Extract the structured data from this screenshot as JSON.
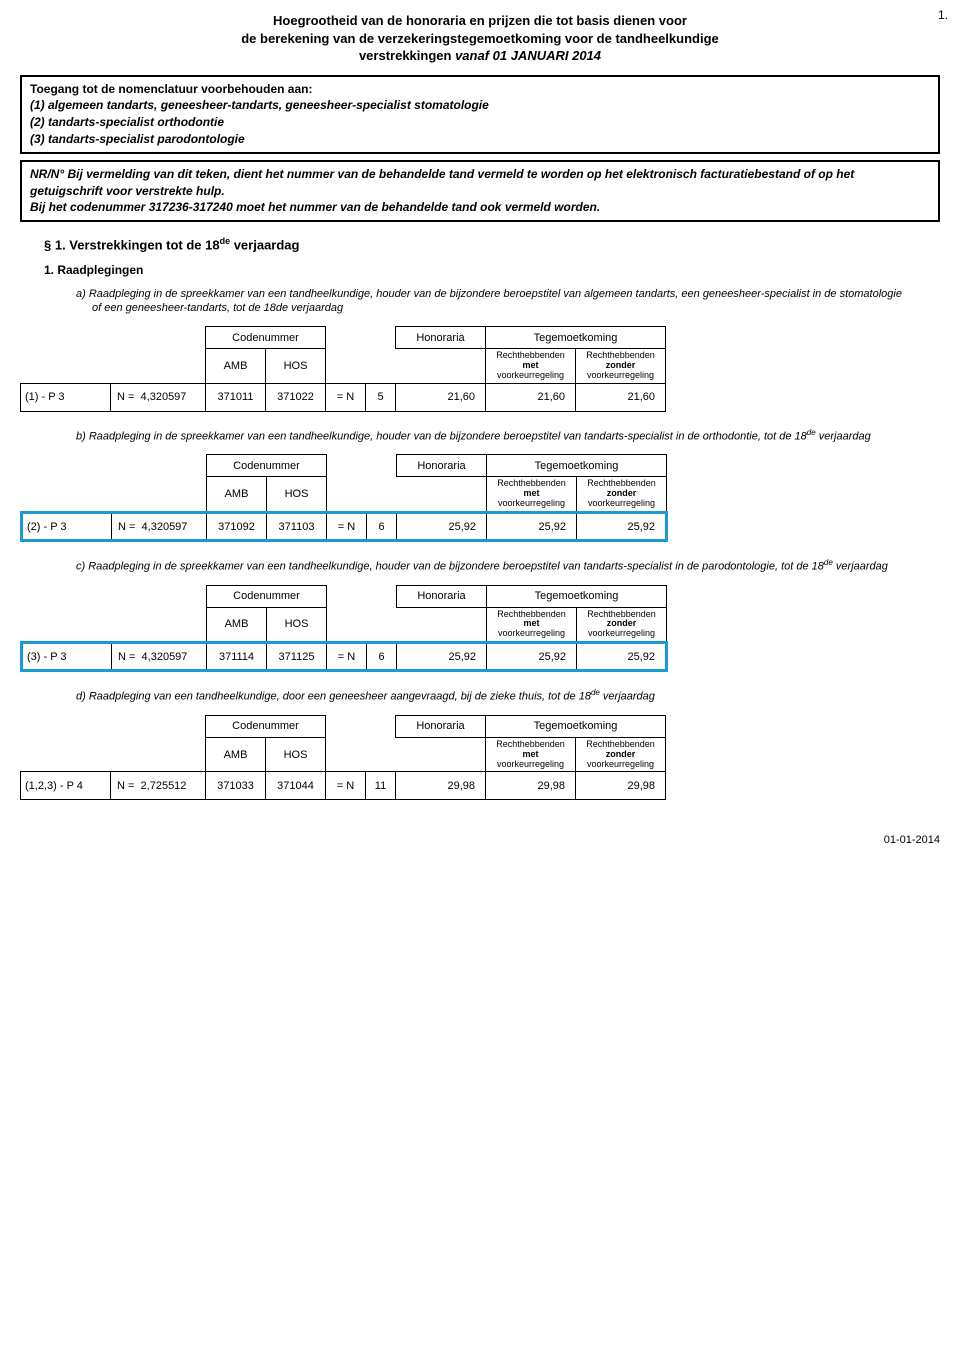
{
  "page_number_top": "1.",
  "footer_date": "01-01-2014",
  "title": {
    "line1": "Hoegrootheid van de honoraria en prijzen die tot basis dienen voor",
    "line2": "de berekening van de verzekeringstegemoetkoming voor de tandheelkundige",
    "line3_prefix": "verstrekkingen ",
    "line3_italic": "vanaf 01 JANUARI 2014"
  },
  "access_box": {
    "heading": "Toegang tot de nomenclatuur voorbehouden aan:",
    "item1": "(1)  algemeen tandarts, geneesheer-tandarts, geneesheer-specialist stomatologie",
    "item2": "(2)  tandarts-specialist orthodontie",
    "item3": "(3)  tandarts-specialist parodontologie"
  },
  "nr_box": {
    "line1": "NR/N° Bij vermelding van dit teken, dient het nummer van de behandelde tand vermeld te worden op het elektronisch facturatiebestand of op het getuigschrift voor verstrekte hulp.",
    "line2": "Bij het codenummer 317236-317240 moet het nummer van de behandelde tand ook vermeld worden."
  },
  "section": {
    "label": "§ 1.   Verstrekkingen tot de 18",
    "sup": "de",
    "tail": " verjaardag"
  },
  "sub1": "1. Raadplegingen",
  "headers": {
    "codenummer": "Codenummer",
    "honoraria": "Honoraria",
    "tegemoetkoming": "Tegemoetkoming",
    "amb": "AMB",
    "hos": "HOS",
    "recht_met_l1": "Rechthebbenden",
    "recht_met_l2": "met",
    "recht_met_l3": "voorkeurregeling",
    "recht_zonder_l1": "Rechthebbenden",
    "recht_zonder_l2": "zonder",
    "recht_zonder_l3": "voorkeurregeling"
  },
  "items": [
    {
      "letter": "a)",
      "desc": "Raadpleging in de spreekkamer van een tandheelkundige, houder van de bijzondere beroepstitel van algemeen tandarts, een geneesheer-specialist in de stomatologie of een geneesheer-tandarts, tot de 18de verjaardag",
      "left": "(1) - P 3",
      "n_label": "N =",
      "n_val": "4,320597",
      "amb": "371011",
      "hos": "371022",
      "eqn": "= N",
      "mult": "5",
      "honoraria": "21,60",
      "teg_met": "21,60",
      "teg_zonder": "21,60",
      "highlight": false
    },
    {
      "letter": "b)",
      "desc": "Raadpleging in de spreekkamer van een tandheelkundige, houder van de bijzondere beroepstitel van tandarts-specialist in de orthodontie, tot de 18",
      "desc_sup": "de",
      "desc_tail": " verjaardag",
      "left": "(2) - P 3",
      "n_label": "N =",
      "n_val": "4,320597",
      "amb": "371092",
      "hos": "371103",
      "eqn": "= N",
      "mult": "6",
      "honoraria": "25,92",
      "teg_met": "25,92",
      "teg_zonder": "25,92",
      "highlight": true
    },
    {
      "letter": "c)",
      "desc": "Raadpleging in de spreekkamer van een tandheelkundige, houder van de bijzondere beroepstitel van tandarts-specialist in de parodontologie, tot de 18",
      "desc_sup": "de",
      "desc_tail": " verjaardag",
      "left": "(3) - P 3",
      "n_label": "N =",
      "n_val": "4,320597",
      "amb": "371114",
      "hos": "371125",
      "eqn": "= N",
      "mult": "6",
      "honoraria": "25,92",
      "teg_met": "25,92",
      "teg_zonder": "25,92",
      "highlight": true
    },
    {
      "letter": "d)",
      "desc": "Raadpleging van een tandheelkundige, door een geneesheer aangevraagd, bij de zieke thuis, tot de 18",
      "desc_sup": "de",
      "desc_tail": " verjaardag",
      "left": "(1,2,3) - P 4",
      "n_label": "N =",
      "n_val": "2,725512",
      "amb": "371033",
      "hos": "371044",
      "eqn": "= N",
      "mult": "11",
      "honoraria": "29,98",
      "teg_met": "29,98",
      "teg_zonder": "29,98",
      "highlight": false
    }
  ]
}
